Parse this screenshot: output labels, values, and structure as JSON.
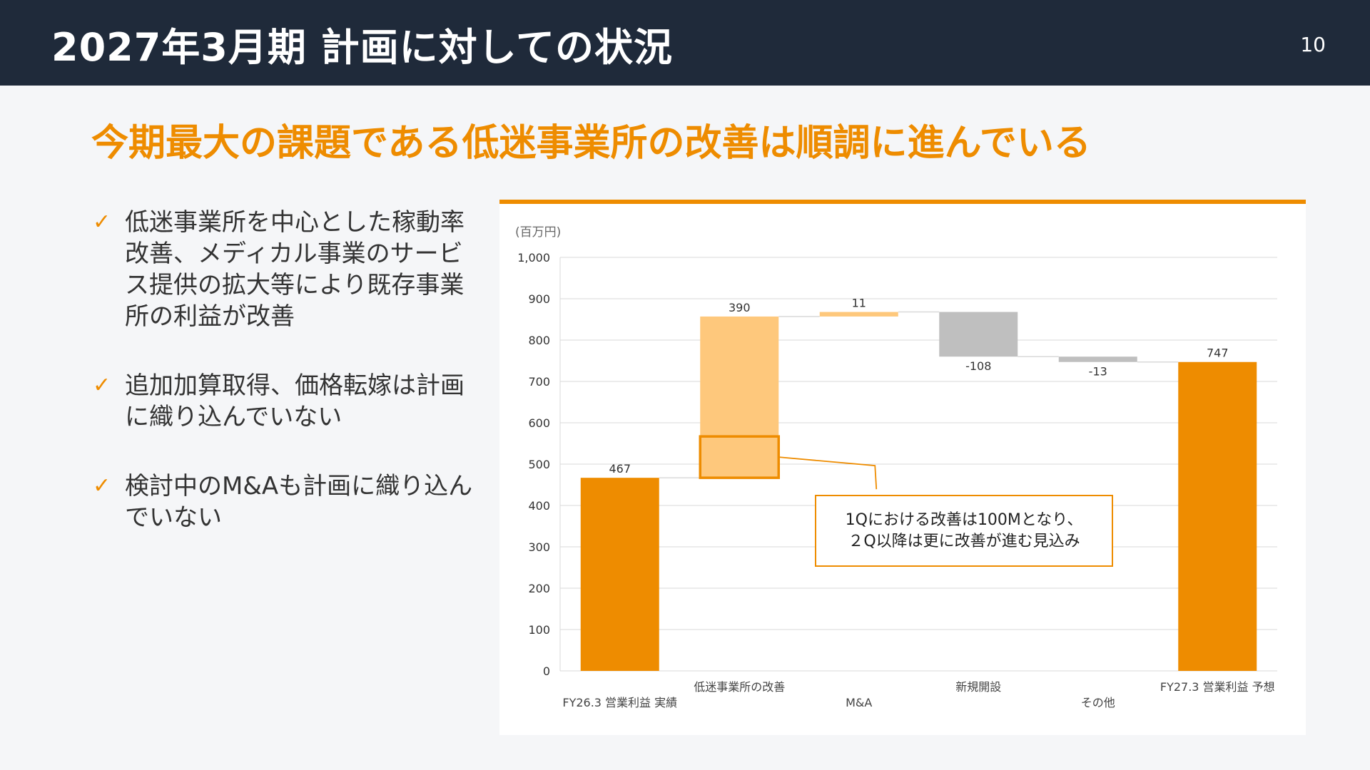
{
  "header": {
    "title": "2027年3月期 計画に対しての状況",
    "page_number": "10"
  },
  "headline": "今期最大の課題である低迷事業所の改善は順調に進んでいる",
  "bullets": [
    {
      "text": "低迷事業所を中心とした稼動率改善、メディカル事業のサービス提供の拡大等により既存事業所の利益が改善"
    },
    {
      "text": "追加加算取得、価格転嫁は計画に織り込んでいない"
    },
    {
      "text": "検討中のM&Aも計画に織り込んでいない"
    }
  ],
  "callout": {
    "line1": "1Qにおける改善は100Mとなり、",
    "line2": "２Q以降は更に改善が進む見込み"
  },
  "colors": {
    "accent": "#ee8c00",
    "light": "#fec87c",
    "gray": "#bfbfbf",
    "header_bg": "#1f2a3a"
  },
  "chart_data": {
    "type": "bar",
    "subtype": "waterfall",
    "unit_label": "(百万円)",
    "ylim": [
      0,
      1000
    ],
    "yticks": [
      0,
      100,
      200,
      300,
      400,
      500,
      600,
      700,
      800,
      900,
      1000
    ],
    "ytick_labels": [
      "0",
      "100",
      "200",
      "300",
      "400",
      "500",
      "600",
      "700",
      "800",
      "900",
      "1,000"
    ],
    "grid": true,
    "categories": [
      "FY26.3 営業利益 実績",
      "低迷事業所の改善",
      "M&A",
      "新規開設",
      "その他",
      "FY27.3 営業利益 予想"
    ],
    "values": [
      467,
      390,
      11,
      -108,
      -13,
      747
    ],
    "value_labels": [
      "467",
      "390",
      "11",
      "-108",
      "-13",
      "747"
    ],
    "kinds": [
      "total",
      "increase",
      "increase",
      "decrease",
      "decrease",
      "total"
    ],
    "highlight": {
      "category": "低迷事業所の改善",
      "from": 467,
      "to": 567
    }
  }
}
